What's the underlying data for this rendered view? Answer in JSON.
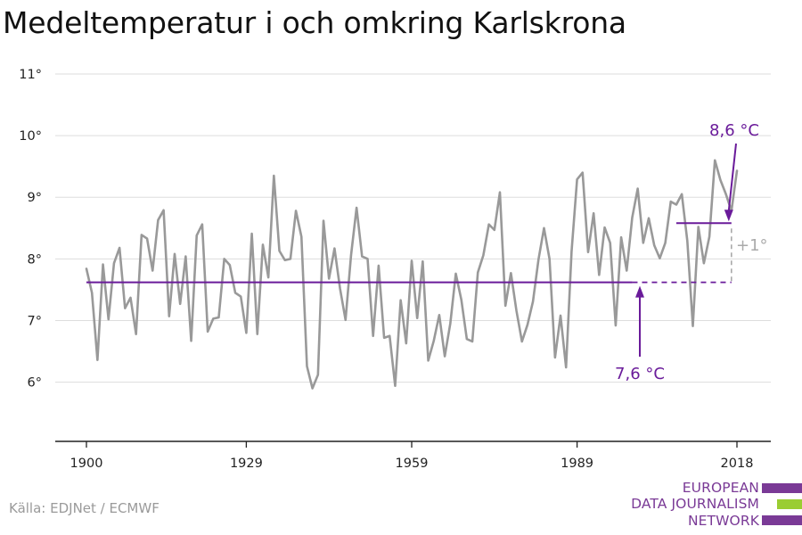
{
  "title": "Medeltemperatur i och omkring Karlskrona",
  "source": "Källa: EDJNet / ECMWF",
  "logo": {
    "lines": [
      "EUROPEAN",
      "DATA JOURNALISM",
      "NETWORK"
    ],
    "colors": [
      "#7a3a96",
      "#9acd32",
      "#7a3a96"
    ]
  },
  "colors": {
    "series": "#999999",
    "accent": "#6a1b9a",
    "delta": "#aaaaaa",
    "grid": "#dddddd"
  },
  "chart_data": {
    "type": "line",
    "title": "Medeltemperatur i och omkring Karlskrona",
    "xlabel": "",
    "ylabel": "",
    "xlim": [
      1900,
      2018
    ],
    "ylim": [
      5,
      11
    ],
    "x_ticks": [
      1900,
      1929,
      1959,
      1989,
      2018
    ],
    "y_ticks": [
      6,
      7,
      8,
      9,
      10,
      11
    ],
    "y_tick_labels": [
      "6°",
      "7°",
      "8°",
      "9°",
      "10°",
      "11°"
    ],
    "grid": true,
    "series": [
      {
        "x": [
          1900,
          1901,
          1902,
          1903,
          1904,
          1905,
          1906,
          1907,
          1908,
          1909,
          1910,
          1911,
          1912,
          1913,
          1914,
          1915,
          1916,
          1917,
          1918,
          1919,
          1920,
          1921,
          1922,
          1923,
          1924,
          1925,
          1926,
          1927,
          1928,
          1929,
          1930,
          1931,
          1932,
          1933,
          1934,
          1935,
          1936,
          1937,
          1938,
          1939,
          1940,
          1941,
          1942,
          1943,
          1944,
          1945,
          1946,
          1947,
          1948,
          1949,
          1950,
          1951,
          1952,
          1953,
          1954,
          1955,
          1956,
          1957,
          1958,
          1959,
          1960,
          1961,
          1962,
          1963,
          1964,
          1965,
          1966,
          1967,
          1968,
          1969,
          1970,
          1971,
          1972,
          1973,
          1974,
          1975,
          1976,
          1977,
          1978,
          1979,
          1980,
          1981,
          1982,
          1983,
          1984,
          1985,
          1986,
          1987,
          1988,
          1989,
          1990,
          1991,
          1992,
          1993,
          1994,
          1995,
          1996,
          1997,
          1998,
          1999,
          2000,
          2001,
          2002,
          2003,
          2004,
          2005,
          2006,
          2007,
          2008,
          2009,
          2010,
          2011,
          2012,
          2013,
          2014,
          2015,
          2016,
          2017,
          2018
        ],
        "values": [
          7.84,
          7.45,
          6.36,
          7.91,
          7.02,
          7.93,
          8.18,
          7.2,
          7.37,
          6.78,
          8.39,
          8.33,
          7.81,
          8.63,
          8.79,
          7.07,
          8.08,
          7.27,
          8.04,
          6.67,
          8.38,
          8.56,
          6.82,
          7.03,
          7.05,
          8.0,
          7.9,
          7.45,
          7.39,
          6.8,
          8.41,
          6.78,
          8.23,
          7.7,
          9.35,
          8.13,
          7.98,
          8.0,
          8.78,
          8.36,
          6.26,
          5.9,
          6.12,
          8.62,
          7.68,
          8.17,
          7.52,
          7.01,
          8.06,
          8.83,
          8.04,
          8.0,
          6.75,
          7.89,
          6.72,
          6.75,
          5.94,
          7.33,
          6.63,
          7.97,
          7.04,
          7.96,
          6.35,
          6.67,
          7.09,
          6.42,
          6.95,
          7.76,
          7.34,
          6.7,
          6.66,
          7.78,
          8.06,
          8.56,
          8.47,
          9.08,
          7.24,
          7.77,
          7.16,
          6.66,
          6.93,
          7.31,
          7.99,
          8.5,
          8.0,
          6.4,
          7.08,
          6.24,
          8.12,
          9.29,
          9.4,
          8.11,
          8.74,
          7.74,
          8.51,
          8.26,
          6.92,
          8.35,
          7.81,
          8.67,
          9.14,
          8.26,
          8.66,
          8.22,
          8.01,
          8.26,
          8.93,
          8.88,
          9.05,
          8.29,
          6.91,
          8.52,
          7.93,
          8.36,
          9.6,
          9.28,
          9.05,
          8.78,
          9.43
        ]
      }
    ],
    "reference_lines": [
      {
        "label": "7,6 °C",
        "value": 7.62,
        "x_from": 1900,
        "x_to": 1999,
        "dashed_to": 2017
      },
      {
        "label": "8,6 °C",
        "value": 8.58,
        "x_from": 2007,
        "x_to": 2017
      }
    ],
    "difference_label": "+1°"
  }
}
